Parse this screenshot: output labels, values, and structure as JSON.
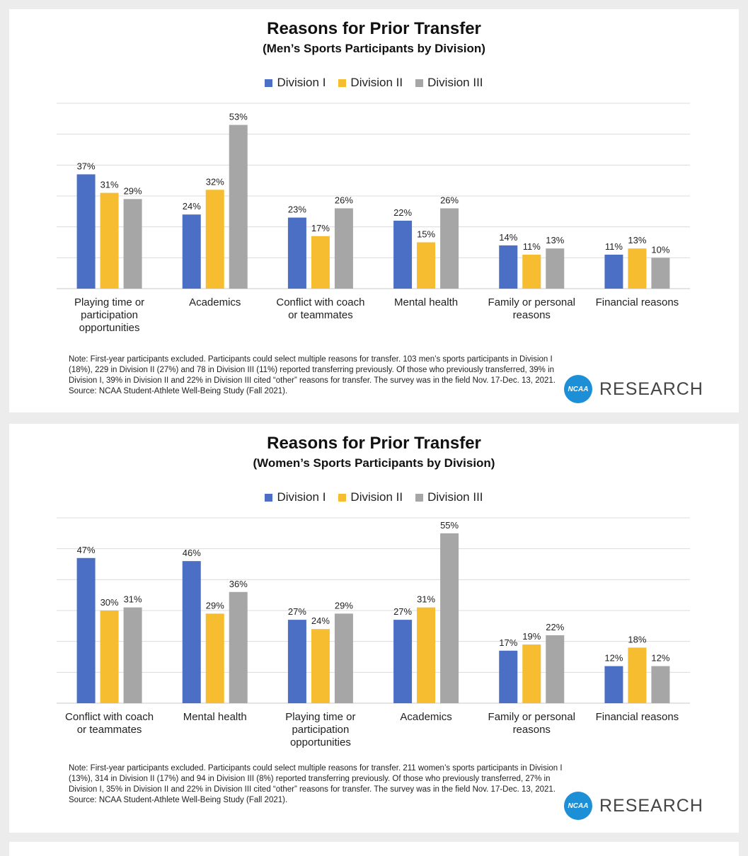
{
  "colors": {
    "division_i": "#4a6fc4",
    "division_ii": "#f5bd2f",
    "division_iii": "#a6a6a6"
  },
  "legend": [
    "Division I",
    "Division II",
    "Division III"
  ],
  "logo": {
    "mark": "NCAA",
    "text": "RESEARCH"
  },
  "chart_data": [
    {
      "type": "bar",
      "title": "Reasons for Prior Transfer",
      "subtitle": "(Men’s Sports Participants by Division)",
      "categories": [
        [
          "Playing time or",
          "participation",
          "opportunities"
        ],
        [
          "Academics"
        ],
        [
          "Conflict with coach",
          "or teammates"
        ],
        [
          "Mental health"
        ],
        [
          "Family or personal",
          "reasons"
        ],
        [
          "Financial reasons"
        ]
      ],
      "series": [
        {
          "name": "Division I",
          "values": [
            37,
            24,
            23,
            22,
            14,
            11
          ]
        },
        {
          "name": "Division II",
          "values": [
            31,
            32,
            17,
            15,
            11,
            13
          ]
        },
        {
          "name": "Division III",
          "values": [
            29,
            53,
            26,
            26,
            13,
            10
          ]
        }
      ],
      "ylim": [
        0,
        60
      ],
      "grid": true,
      "legend_position": "top",
      "note": "Note: First-year participants excluded. Participants could select multiple reasons for transfer. 103 men’s sports participants in Division I (18%), 229 in Division II (27%) and 78 in Division III (11%) reported transferring previously. Of those who previously transferred, 39% in Division I, 39% in Division II and 22% in Division III cited “other” reasons for transfer. The survey was in the field Nov. 17-Dec. 13, 2021. Source: NCAA Student-Athlete Well-Being Study (Fall 2021)."
    },
    {
      "type": "bar",
      "title": "Reasons for Prior Transfer",
      "subtitle": "(Women’s Sports Participants by Division)",
      "categories": [
        [
          "Conflict with coach",
          "or teammates"
        ],
        [
          "Mental health"
        ],
        [
          "Playing time or",
          "participation",
          "opportunities"
        ],
        [
          "Academics"
        ],
        [
          "Family or personal",
          "reasons"
        ],
        [
          "Financial reasons"
        ]
      ],
      "series": [
        {
          "name": "Division I",
          "values": [
            47,
            46,
            27,
            27,
            17,
            12
          ]
        },
        {
          "name": "Division II",
          "values": [
            30,
            29,
            24,
            31,
            19,
            18
          ]
        },
        {
          "name": "Division III",
          "values": [
            31,
            36,
            29,
            55,
            22,
            12
          ]
        }
      ],
      "ylim": [
        0,
        60
      ],
      "grid": true,
      "legend_position": "top",
      "note": "Note: First-year participants excluded. Participants could select multiple reasons for transfer. 211 women’s sports participants in Division I (13%), 314 in Division II (17%) and 94 in Division III (8%) reported transferring previously. Of those who previously transferred, 27% in Division I, 35% in Division II and 22% in Division III cited “other” reasons for transfer. The survey was in the field Nov. 17-Dec. 13, 2021. Source: NCAA Student-Athlete Well-Being Study (Fall 2021)."
    }
  ]
}
